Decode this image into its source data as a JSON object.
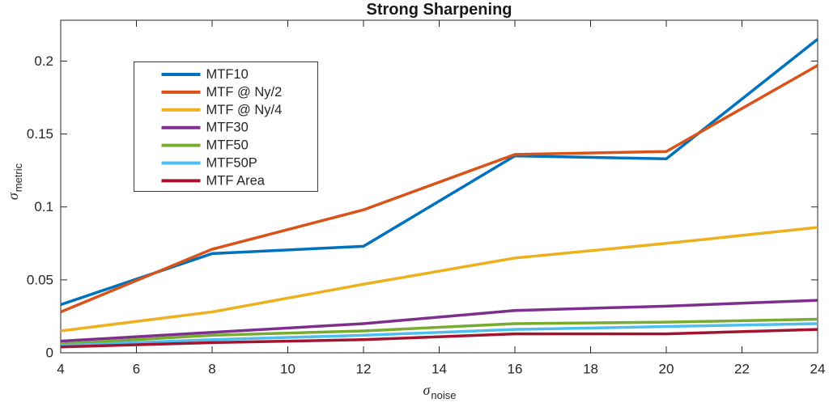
{
  "chart_data": {
    "type": "line",
    "title": "Strong Sharpening",
    "xlabel": "σ_noise",
    "xlabel_symbol": "σ",
    "xlabel_sub": "noise",
    "ylabel": "σ_metric",
    "ylabel_symbol": "σ",
    "ylabel_sub": "metric",
    "x": [
      4,
      8,
      12,
      16,
      20,
      24
    ],
    "series": [
      {
        "name": "MTF10",
        "color": "#0072BD",
        "values": [
          0.033,
          0.068,
          0.073,
          0.135,
          0.133,
          0.215
        ]
      },
      {
        "name": "MTF @ Ny/2",
        "color": "#D95319",
        "values": [
          0.028,
          0.071,
          0.098,
          0.136,
          0.138,
          0.197
        ]
      },
      {
        "name": "MTF @ Ny/4",
        "color": "#EDB120",
        "values": [
          0.015,
          0.028,
          0.047,
          0.065,
          0.075,
          0.086
        ]
      },
      {
        "name": "MTF30",
        "color": "#7E2F8E",
        "values": [
          0.008,
          0.014,
          0.02,
          0.029,
          0.032,
          0.036
        ]
      },
      {
        "name": "MTF50",
        "color": "#77AC30",
        "values": [
          0.006,
          0.012,
          0.015,
          0.02,
          0.021,
          0.023
        ]
      },
      {
        "name": "MTF50P",
        "color": "#4DBEEE",
        "values": [
          0.005,
          0.009,
          0.012,
          0.016,
          0.018,
          0.02
        ]
      },
      {
        "name": "MTF Area",
        "color": "#A2142F",
        "values": [
          0.004,
          0.007,
          0.009,
          0.013,
          0.013,
          0.016
        ]
      }
    ],
    "xlim": [
      4,
      24
    ],
    "ylim": [
      0,
      0.228
    ],
    "xticks": [
      4,
      6,
      8,
      10,
      12,
      14,
      16,
      18,
      20,
      22,
      24
    ],
    "xtick_labels": [
      "4",
      "6",
      "8",
      "10",
      "12",
      "14",
      "16",
      "18",
      "20",
      "22",
      "24"
    ],
    "yticks": [
      0,
      0.05,
      0.1,
      0.15,
      0.2
    ],
    "ytick_labels": [
      "0",
      "0.05",
      "0.1",
      "0.15",
      "0.2"
    ],
    "grid": false,
    "legend_position": "upper-left-inside",
    "legend_entries": [
      "MTF10",
      "MTF @ Ny/2",
      "MTF @ Ny/4",
      "MTF30",
      "MTF50",
      "MTF50P",
      "MTF Area"
    ],
    "axis_color": "#262626",
    "background_color": "#ffffff"
  }
}
